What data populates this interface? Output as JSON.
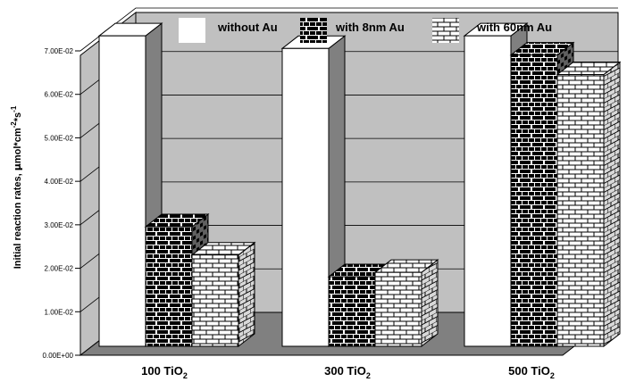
{
  "chart_data": {
    "type": "bar",
    "categories": [
      {
        "base": "100 TiO",
        "sub": "2"
      },
      {
        "base": "300 TiO",
        "sub": "2"
      },
      {
        "base": "500 TiO",
        "sub": "2"
      }
    ],
    "series": [
      {
        "name": "without Au",
        "values": [
          0.0714,
          0.0685,
          0.0714
        ],
        "pattern": "white"
      },
      {
        "name": "with 8nm Au",
        "values": [
          0.0275,
          0.016,
          0.067
        ],
        "pattern": "brick-black"
      },
      {
        "name": "with 60nm Au",
        "values": [
          0.021,
          0.017,
          0.0625
        ],
        "pattern": "brick-white"
      }
    ],
    "ylabel": {
      "main": "Initial reaction rates, ",
      "mu": "μ",
      "mid": "mol*cm",
      "sup1": "-2",
      "mid2": "*s",
      "sup2": "-1"
    },
    "yticks": [
      "0.00E+00",
      "1.00E-02",
      "2.00E-02",
      "3.00E-02",
      "4.00E-02",
      "5.00E-02",
      "6.00E-02",
      "7.00E-02"
    ],
    "ylim": [
      0,
      0.07
    ],
    "grid": true,
    "legend": "top",
    "colors": {
      "wall": "#c0c0c0",
      "floor": "#808080",
      "bar_side": "#808080",
      "bar_top": "#ffffff",
      "grid": "#000000"
    }
  }
}
